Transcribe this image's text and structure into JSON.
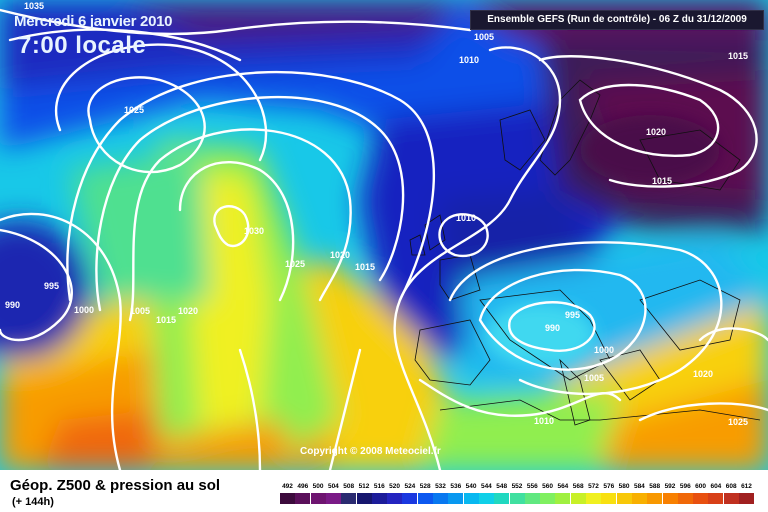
{
  "header": {
    "date": "Mercredi 6 janvier 2010",
    "time": "7:00 locale",
    "model_run": "Ensemble GEFS (Run de contrôle) - 06 Z du 31/12/2009"
  },
  "footer": {
    "title": "Géop. Z500 & pression au sol",
    "lead_time": "(+ 144h)"
  },
  "copyright": "Copyright © 2008 Meteociel.fr",
  "isobar_labels": [
    "1035",
    "1005",
    "1010",
    "1015",
    "1025",
    "1020",
    "1015",
    "1010",
    "1030",
    "1025",
    "1020",
    "1015",
    "995",
    "990",
    "1000",
    "1005",
    "1015",
    "1020",
    "995",
    "990",
    "1000",
    "1005",
    "1010",
    "1020",
    "1025"
  ],
  "legend": {
    "values": [
      "492",
      "496",
      "500",
      "504",
      "508",
      "512",
      "516",
      "520",
      "524",
      "528",
      "532",
      "536",
      "540",
      "544",
      "548",
      "552",
      "556",
      "560",
      "564",
      "568",
      "572",
      "576",
      "580",
      "584",
      "588",
      "592",
      "596",
      "600",
      "604",
      "608",
      "612"
    ],
    "colors": [
      "#3c0a3c",
      "#5a0f5a",
      "#6e1470",
      "#7a1a86",
      "#2a2a70",
      "#16166e",
      "#1c1c9a",
      "#2424c0",
      "#1a38e0",
      "#0c58f0",
      "#0878f0",
      "#0898f0",
      "#08b8f0",
      "#10d0e8",
      "#20d8c0",
      "#40e0a0",
      "#60e880",
      "#80f060",
      "#a0f040",
      "#c8f028",
      "#f0f020",
      "#f8e010",
      "#f8c808",
      "#f8b000",
      "#f89800",
      "#f88000",
      "#f06808",
      "#e85010",
      "#d84018",
      "#c03020",
      "#a02020"
    ]
  }
}
